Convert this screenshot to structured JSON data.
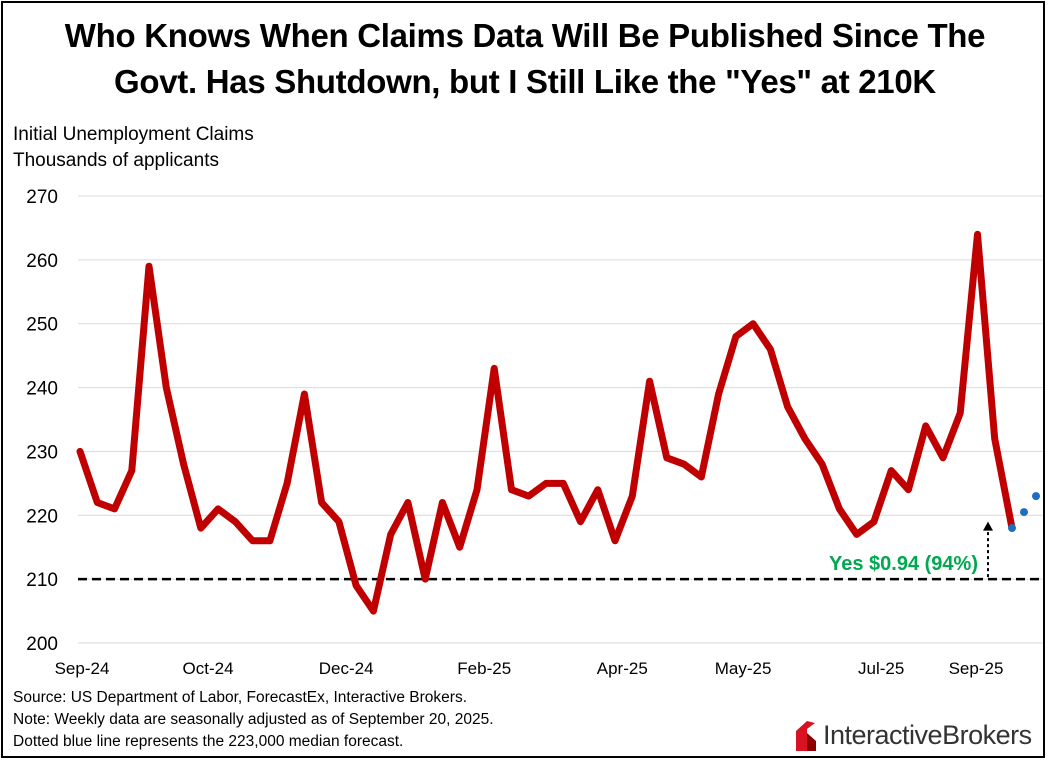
{
  "title_line1": "Who Knows When Claims Data Will Be Published Since The",
  "title_line2": "Govt. Has Shutdown, but I Still Like the \"Yes\" at 210K",
  "ylabel_line1": "Initial Unemployment Claims",
  "ylabel_line2": "Thousands of applicants",
  "footer": {
    "source": "Source: US Department of Labor, ForecastEx, Interactive Brokers.",
    "note": "Note: Weekly data are seasonally adjusted as of September 20, 2025.",
    "dotted": "Dotted blue line represents the 223,000 median forecast."
  },
  "logo": {
    "part1": "Interactive",
    "part2": "Brokers"
  },
  "chart_data": {
    "type": "line",
    "ylim": [
      200,
      270
    ],
    "yticks": [
      200,
      210,
      220,
      230,
      240,
      250,
      260,
      270
    ],
    "xtick_labels": [
      "Sep-24",
      "Oct-24",
      "Dec-24",
      "Feb-25",
      "Apr-25",
      "May-25",
      "Jul-25",
      "Sep-25"
    ],
    "grid": true,
    "series": [
      {
        "color": "#c00000",
        "values": [
          230,
          222,
          221,
          227,
          259,
          240,
          228,
          218,
          221,
          219,
          216,
          216,
          225,
          239,
          222,
          219,
          209,
          205,
          217,
          222,
          210,
          222,
          215,
          224,
          243,
          224,
          223,
          225,
          225,
          219,
          224,
          216,
          223,
          241,
          229,
          228,
          226,
          239,
          248,
          250,
          246,
          237,
          232,
          228,
          221,
          217,
          219,
          227,
          224,
          234,
          229,
          236,
          264,
          232,
          218
        ]
      },
      {
        "color": "#1f6fc0",
        "style": "dotted",
        "values": [
          218,
          220.5,
          223
        ]
      }
    ],
    "reference_line": {
      "y": 210,
      "style": "dashed",
      "color": "#000000"
    },
    "annotation": {
      "text": "Yes $0.94 (94%)",
      "color": "#00a850"
    }
  }
}
